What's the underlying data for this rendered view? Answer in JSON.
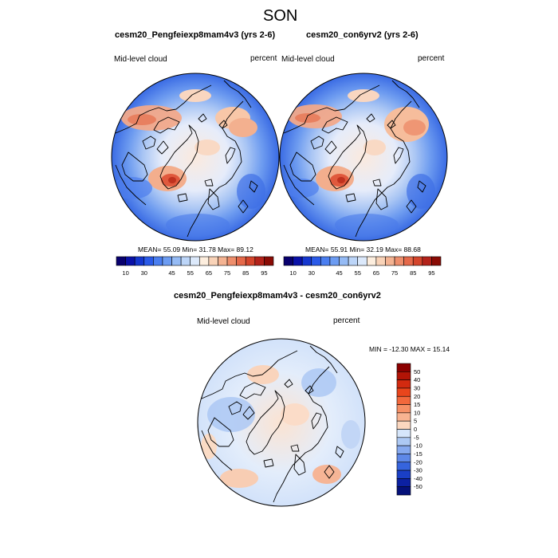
{
  "figure": {
    "season": "SON"
  },
  "panels": [
    {
      "title": "cesm20_Pengfeiexp8mam4v3 (yrs 2-6)",
      "left_label": "Mid-level cloud",
      "right_label": "percent",
      "stats": "MEAN=  55.09  Min=  31.78  Max=  89.12"
    },
    {
      "title": "cesm20_con6yrv2 (yrs 2-6)",
      "left_label": "Mid-level cloud",
      "right_label": "percent",
      "stats": "MEAN=  55.91  Min=  32.19  Max=  88.68"
    },
    {
      "title": "cesm20_Pengfeiexp8mam4v3 - cesm20_con6yrv2",
      "left_label": "Mid-level cloud",
      "right_label": "percent",
      "stats": "MIN = -12.30 MAX =  15.14"
    }
  ],
  "chart_data": {
    "type": "heatmap",
    "projection": "north-polar-stereographic",
    "variable": "Mid-level cloud",
    "units": "percent",
    "abs_colorbar": {
      "labels": [
        "10",
        "30",
        "45",
        "55",
        "65",
        "75",
        "85",
        "95"
      ],
      "levels": [
        10,
        20,
        25,
        30,
        35,
        40,
        45,
        50,
        55,
        60,
        65,
        70,
        75,
        80,
        85,
        90,
        95
      ],
      "colors": [
        "#08006e",
        "#0a11a8",
        "#1537cf",
        "#2a5ae8",
        "#4a7ef0",
        "#6c9cf2",
        "#95bbf5",
        "#bcd5f8",
        "#dce9fb",
        "#fdeede",
        "#f9d3b8",
        "#f4b392",
        "#ee8e6c",
        "#e5694a",
        "#d4452c",
        "#b3221a",
        "#8a0b05"
      ]
    },
    "diff_colorbar": {
      "labels": [
        "50",
        "40",
        "30",
        "20",
        "15",
        "10",
        "5",
        "0",
        "-5",
        "-10",
        "-15",
        "-20",
        "-30",
        "-40",
        "-50"
      ],
      "colors": [
        "#8b0000",
        "#b21406",
        "#d22a10",
        "#e9451c",
        "#f2683c",
        "#f69066",
        "#f8b391",
        "#fbd7bf",
        "#d6e6fb",
        "#adc9f4",
        "#86a9ef",
        "#5e88e8",
        "#3664dd",
        "#1a3fc6",
        "#0c21a2",
        "#05117a"
      ]
    }
  }
}
